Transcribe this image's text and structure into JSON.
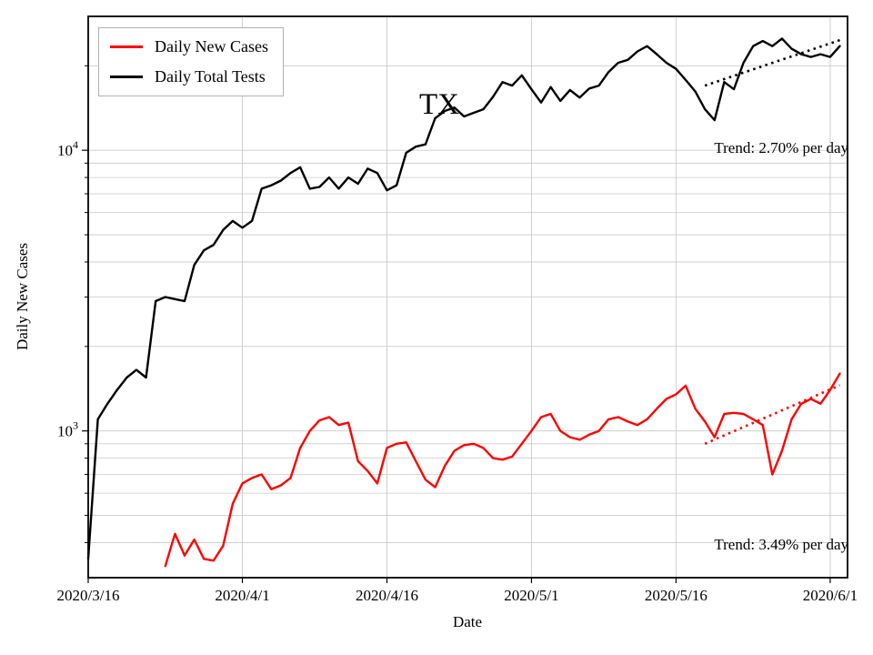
{
  "chart_data": {
    "type": "line",
    "state_label": "TX",
    "xlabel": "Date",
    "ylabel": "Daily New Cases",
    "y_scale": "log",
    "ylim": [
      300,
      30000
    ],
    "xlim_days": [
      0,
      78.8
    ],
    "x_origin_date": "2020/3/16",
    "grid": true,
    "x_ticks": [
      {
        "label": "2020/3/16",
        "date": "2020/3/16"
      },
      {
        "label": "2020/4/1",
        "date": "2020/4/1"
      },
      {
        "label": "2020/4/16",
        "date": "2020/4/16"
      },
      {
        "label": "2020/5/1",
        "date": "2020/5/1"
      },
      {
        "label": "2020/5/16",
        "date": "2020/5/16"
      },
      {
        "label": "2020/6/1",
        "date": "2020/6/1"
      }
    ],
    "y_ticks": [
      {
        "value": 1000,
        "base": "10",
        "exp": "3"
      },
      {
        "value": 10000,
        "base": "10",
        "exp": "4"
      }
    ],
    "legend": {
      "position": "upper-left",
      "entries": [
        {
          "label": "Daily New Cases",
          "color": "#ff0000"
        },
        {
          "label": "Daily Total Tests",
          "color": "#000000"
        }
      ]
    },
    "series": [
      {
        "name": "Daily New Cases",
        "color": "#ff0000",
        "start_date": "2020/3/24",
        "values": [
          330,
          430,
          360,
          410,
          350,
          345,
          390,
          550,
          650,
          680,
          700,
          620,
          640,
          680,
          870,
          1000,
          1090,
          1120,
          1050,
          1070,
          780,
          720,
          650,
          870,
          900,
          910,
          780,
          670,
          630,
          750,
          850,
          890,
          900,
          870,
          800,
          790,
          810,
          900,
          1000,
          1120,
          1150,
          1000,
          950,
          930,
          970,
          1000,
          1100,
          1120,
          1080,
          1050,
          1100,
          1200,
          1300,
          1350,
          1450,
          1200,
          1080,
          950,
          1150,
          1160,
          1150,
          1100,
          1050,
          700,
          850,
          1100,
          1250,
          1300,
          1250,
          1400,
          1600
        ]
      },
      {
        "name": "Daily Total Tests",
        "color": "#000000",
        "start_date": "2020/3/16",
        "values": [
          350,
          1100,
          1250,
          1400,
          1550,
          1650,
          1550,
          2900,
          3000,
          2950,
          2900,
          3900,
          4400,
          4600,
          5200,
          5600,
          5300,
          5600,
          7300,
          7500,
          7800,
          8300,
          8700,
          7300,
          7400,
          8000,
          7300,
          8000,
          7600,
          8600,
          8300,
          7200,
          7500,
          9800,
          10300,
          10500,
          13000,
          13800,
          14200,
          13200,
          13600,
          14000,
          15500,
          17500,
          17000,
          18500,
          16500,
          14800,
          16800,
          15000,
          16400,
          15400,
          16600,
          17000,
          19000,
          20500,
          21000,
          22500,
          23500,
          22000,
          20500,
          19500,
          17800,
          16200,
          14000,
          12800,
          17500,
          16500,
          20500,
          23500,
          24500,
          23500,
          25000,
          23000,
          22000,
          21500,
          22000,
          21500,
          23500
        ]
      }
    ],
    "trends": [
      {
        "series": "Daily Total Tests",
        "label": "Trend: 2.70% per day",
        "color": "#000000",
        "start_date": "2020/5/19",
        "end_date": "2020/6/2",
        "start_value": 17000,
        "rate_pct_per_day": 2.7
      },
      {
        "series": "Daily New Cases",
        "label": "Trend: 3.49% per day",
        "color": "#ff0000",
        "start_date": "2020/5/19",
        "end_date": "2020/6/2",
        "start_value": 900,
        "rate_pct_per_day": 3.49
      }
    ]
  }
}
